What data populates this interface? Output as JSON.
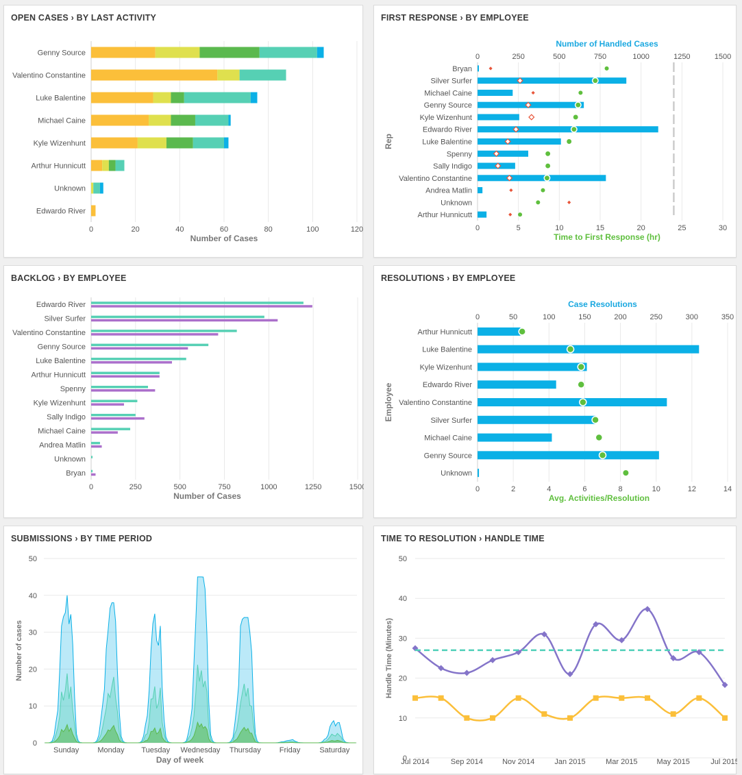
{
  "panels": {
    "open_cases": {
      "title": "OPEN CASES › BY LAST ACTIVITY"
    },
    "first_response": {
      "title": "FIRST RESPONSE › BY EMPLOYEE"
    },
    "backlog": {
      "title": "BACKLOG › BY EMPLOYEE"
    },
    "resolutions": {
      "title": "RESOLUTIONS › BY EMPLOYEE"
    },
    "submissions": {
      "title": "SUBMISSIONS › BY TIME PERIOD"
    },
    "handle_time": {
      "title": "TIME TO RESOLUTION › HANDLE TIME"
    }
  },
  "colors": {
    "orange": "#fbbf3a",
    "yellow": "#dfe04e",
    "green": "#5bb94e",
    "teal": "#56d0b4",
    "blue": "#0bb0e6",
    "purple": "#ab6fcb",
    "grid": "#e9e9e9",
    "axis": "#777777",
    "label": "#555555",
    "title_blue": "#1aa8e0",
    "title_green": "#5fbf3e",
    "line_purple": "#8474c9",
    "line_yellow": "#fbbf3a",
    "line_teal": "#4fcfb9"
  },
  "chart_data": [
    {
      "id": "open_cases",
      "type": "bar",
      "orientation": "horizontal",
      "stacked": true,
      "categories": [
        "Genny Source",
        "Valentino Constantine",
        "Luke Balentine",
        "Michael Caine",
        "Kyle Wizenhunt",
        "Arthur Hunnicutt",
        "Unknown",
        "Edwardo River"
      ],
      "series": [
        {
          "color": "#fbbf3a",
          "values": [
            29,
            57,
            28,
            26,
            21,
            5,
            0,
            2
          ]
        },
        {
          "color": "#dfe04e",
          "values": [
            20,
            10,
            8,
            10,
            13,
            3,
            1,
            0
          ]
        },
        {
          "color": "#5bb94e",
          "values": [
            27,
            0,
            6,
            11,
            12,
            3,
            0,
            0
          ]
        },
        {
          "color": "#56d0b4",
          "values": [
            26,
            21,
            30,
            15,
            14,
            4,
            3,
            0
          ]
        },
        {
          "color": "#0bb0e6",
          "values": [
            3,
            0,
            3,
            1,
            2,
            0,
            1.5,
            0
          ]
        }
      ],
      "xlabel": "Number of Cases",
      "xlim": [
        0,
        120
      ],
      "xticks": [
        "0",
        "20",
        "40",
        "60",
        "80",
        "100",
        "120"
      ]
    },
    {
      "id": "first_response",
      "type": "bar",
      "orientation": "horizontal",
      "title": "Number of Handled Cases",
      "ylabel": "Rep",
      "xlabel": "Time to First Response (hr)",
      "categories": [
        "Bryan",
        "Silver Surfer",
        "Michael Caine",
        "Genny Source",
        "Kyle Wizenhunt",
        "Edwardo River",
        "Luke Balentine",
        "Spenny",
        "Sally Indigo",
        "Valentino Constantine",
        "Andrea Matlin",
        "Unknown",
        "Arthur Hunnicutt"
      ],
      "handled_cases": [
        5,
        910,
        215,
        650,
        255,
        1105,
        510,
        310,
        230,
        785,
        30,
        0,
        55
      ],
      "handled_cases_axis": {
        "range": [
          0,
          1500
        ],
        "ticks": [
          "0",
          "250",
          "500",
          "750",
          "1000",
          "1250",
          "1500"
        ]
      },
      "time_a_hr": [
        1.6,
        5.2,
        6.8,
        6.2,
        6.6,
        4.7,
        3.7,
        2.3,
        2.5,
        3.9,
        4.1,
        11.2,
        4.0
      ],
      "time_b_hr": [
        15.8,
        14.4,
        12.6,
        12.3,
        12.0,
        11.8,
        11.2,
        8.6,
        8.6,
        8.5,
        8.0,
        7.4,
        5.2
      ],
      "time_axis": {
        "range": [
          0,
          30
        ],
        "ticks": [
          "0",
          "5",
          "10",
          "15",
          "20",
          "25",
          "30"
        ]
      },
      "reference_line_hr": 24
    },
    {
      "id": "backlog",
      "type": "bar",
      "orientation": "horizontal",
      "categories": [
        "Edwardo River",
        "Silver Surfer",
        "Valentino Constantine",
        "Genny Source",
        "Luke Balentine",
        "Arthur Hunnicutt",
        "Spenny",
        "Kyle Wizenhunt",
        "Sally Indigo",
        "Michael Caine",
        "Andrea Matlin",
        "Unknown",
        "Bryan"
      ],
      "series": [
        {
          "color": "#56d0b4",
          "values": [
            1195,
            975,
            820,
            660,
            535,
            385,
            320,
            260,
            250,
            220,
            50,
            8,
            8
          ]
        },
        {
          "color": "#ab6fcb",
          "values": [
            1245,
            1050,
            715,
            545,
            455,
            385,
            360,
            185,
            300,
            150,
            60,
            0,
            25
          ]
        }
      ],
      "xlabel": "Number of Cases",
      "xlim": [
        0,
        1500
      ],
      "xticks": [
        "0",
        "250",
        "500",
        "750",
        "1000",
        "1250",
        "1500"
      ]
    },
    {
      "id": "resolutions",
      "type": "bar",
      "orientation": "horizontal",
      "title": "Case Resolutions",
      "ylabel": "Employee",
      "xlabel": "Avg. Activities/Resolution",
      "categories": [
        "Arthur Hunnicutt",
        "Luke Balentine",
        "Kyle Wizenhunt",
        "Edwardo River",
        "Valentino Constantine",
        "Silver Surfer",
        "Michael Caine",
        "Genny Source",
        "Unknown"
      ],
      "case_resolutions": [
        60,
        310,
        153,
        110,
        265,
        165,
        104,
        254,
        2
      ],
      "case_resolutions_axis": {
        "range": [
          0,
          350
        ],
        "ticks": [
          "0",
          "50",
          "100",
          "150",
          "200",
          "250",
          "300",
          "350"
        ]
      },
      "avg_activities": [
        2.5,
        5.2,
        5.8,
        5.8,
        5.9,
        6.6,
        6.8,
        7.0,
        8.3
      ],
      "avg_activities_axis": {
        "range": [
          0,
          14
        ],
        "ticks": [
          "0",
          "2",
          "4",
          "6",
          "8",
          "10",
          "12",
          "14"
        ]
      }
    },
    {
      "id": "submissions",
      "type": "area",
      "xlabel": "Day of week",
      "ylabel": "Number of cases",
      "categories": [
        "Sunday",
        "Monday",
        "Tuesday",
        "Wednesday",
        "Thursday",
        "Friday",
        "Saturday"
      ],
      "ylim": [
        0,
        50
      ],
      "yticks": [
        "0",
        "10",
        "20",
        "30",
        "40",
        "50"
      ],
      "daily_peak": [
        40,
        38,
        35,
        45,
        34,
        1,
        6
      ],
      "daily_secondary_peak": [
        29,
        20,
        16,
        28,
        25,
        0,
        3
      ],
      "series": [
        {
          "color": "#0bb0e6",
          "shape": "total"
        },
        {
          "color": "#56d0b4",
          "shape": "subset"
        },
        {
          "color": "#5bb94e",
          "shape": "subset"
        }
      ]
    },
    {
      "id": "handle_time",
      "type": "line",
      "ylabel": "Handle Time (Minutes)",
      "x": [
        "Jul 2014",
        "Aug 2014",
        "Sep 2014",
        "Oct 2014",
        "Nov 2014",
        "Dec 2014",
        "Jan 2015",
        "Feb 2015",
        "Mar 2015",
        "Apr 2015",
        "May 2015",
        "Jun 2015",
        "Jul 2015"
      ],
      "xticks": [
        "Jul 2014",
        "Sep 2014",
        "Nov 2014",
        "Jan 2015",
        "Mar 2015",
        "May 2015",
        "Jul 2015"
      ],
      "ylim": [
        0,
        50
      ],
      "yticks": [
        "0",
        "10",
        "20",
        "30",
        "40",
        "50"
      ],
      "series": [
        {
          "color": "#8474c9",
          "marker": "diamond",
          "values": [
            27.5,
            22.5,
            21.3,
            24.5,
            26.5,
            31.0,
            21.0,
            33.5,
            29.5,
            37.3,
            25.0,
            26.5,
            18.3
          ]
        },
        {
          "color": "#fbbf3a",
          "marker": "square",
          "values": [
            15.0,
            15.0,
            10.0,
            10.0,
            15.0,
            11.0,
            10.0,
            15.0,
            15.0,
            15.0,
            11.0,
            15.0,
            10.0
          ]
        },
        {
          "color": "#4fcfb9",
          "marker": "none",
          "style": "dashed",
          "values": [
            27.0,
            27.0,
            27.0,
            27.0,
            27.0,
            27.0,
            27.0,
            27.0,
            27.0,
            27.0,
            27.0,
            27.0,
            27.0
          ]
        }
      ]
    }
  ]
}
